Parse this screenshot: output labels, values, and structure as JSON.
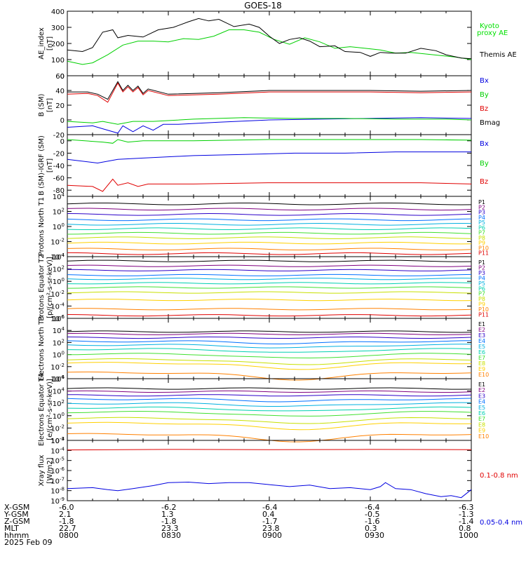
{
  "title": "GOES-18",
  "footer": {
    "row_labels": [
      "X-GSM",
      "Y-GSM",
      "Z-GSM",
      "MLT",
      "hhmm",
      "2025 Feb 09"
    ],
    "columns": [
      [
        "-6.0",
        "2.1",
        "-1.8",
        "22.7",
        "0800"
      ],
      [
        "-6.2",
        "1.3",
        "-1.8",
        "23.3",
        "0830"
      ],
      [
        "-6.4",
        "0.4",
        "-1.7",
        "23.8",
        "0900"
      ],
      [
        "-6.4",
        "-0.5",
        "-1.6",
        "0.3",
        "0930"
      ],
      [
        "-6.3",
        "-1.3",
        "-1.4",
        "0.8",
        "1000"
      ]
    ]
  },
  "colors": {
    "black": "#000000",
    "green": "#00d000",
    "blue": "#0000e0",
    "red": "#e00000",
    "bright_green": "#00e000",
    "ladder": [
      "#000000",
      "#7f007f",
      "#2b00c8",
      "#0070ff",
      "#00b0e0",
      "#00d0b0",
      "#40e030",
      "#c8e000",
      "#ffd000",
      "#ff8000",
      "#e00000"
    ]
  },
  "chart_data": [
    {
      "type": "line",
      "ylabel": "AE_index [nT]",
      "ylim": [
        0,
        400
      ],
      "y_ticks": [
        "0",
        "100",
        "200",
        "300",
        "400"
      ],
      "log": false,
      "x": [
        "0800",
        "0830",
        "0900",
        "0930",
        "1000"
      ],
      "series": [
        {
          "name": "Kyoto proxy AE",
          "color": "green",
          "points": [
            [
              0,
              90
            ],
            [
              6,
              70
            ],
            [
              10,
              80
            ],
            [
              16,
              130
            ],
            [
              22,
              190
            ],
            [
              28,
              215
            ],
            [
              34,
              215
            ],
            [
              40,
              210
            ],
            [
              46,
              230
            ],
            [
              52,
              225
            ],
            [
              58,
              245
            ],
            [
              64,
              285
            ],
            [
              70,
              285
            ],
            [
              76,
              270
            ],
            [
              82,
              225
            ],
            [
              88,
              195
            ],
            [
              94,
              235
            ],
            [
              100,
              210
            ],
            [
              106,
              170
            ],
            [
              112,
              180
            ],
            [
              118,
              170
            ],
            [
              124,
              160
            ],
            [
              130,
              140
            ],
            [
              136,
              145
            ],
            [
              142,
              135
            ],
            [
              148,
              125
            ],
            [
              154,
              115
            ],
            [
              160,
              100
            ]
          ]
        },
        {
          "name": "Themis AE",
          "color": "black",
          "points": [
            [
              0,
              160
            ],
            [
              6,
              150
            ],
            [
              10,
              175
            ],
            [
              14,
              270
            ],
            [
              18,
              285
            ],
            [
              20,
              235
            ],
            [
              24,
              250
            ],
            [
              30,
              240
            ],
            [
              36,
              285
            ],
            [
              42,
              300
            ],
            [
              48,
              335
            ],
            [
              52,
              355
            ],
            [
              56,
              340
            ],
            [
              60,
              350
            ],
            [
              66,
              305
            ],
            [
              72,
              320
            ],
            [
              76,
              300
            ],
            [
              80,
              245
            ],
            [
              84,
              200
            ],
            [
              88,
              225
            ],
            [
              92,
              235
            ],
            [
              96,
              215
            ],
            [
              100,
              180
            ],
            [
              106,
              185
            ],
            [
              110,
              150
            ],
            [
              116,
              145
            ],
            [
              120,
              120
            ],
            [
              124,
              145
            ],
            [
              128,
              140
            ],
            [
              134,
              140
            ],
            [
              140,
              170
            ],
            [
              146,
              155
            ],
            [
              150,
              130
            ],
            [
              156,
              110
            ],
            [
              160,
              105
            ]
          ]
        }
      ]
    },
    {
      "type": "line",
      "ylabel": "B (SM) [nT]",
      "ylim": [
        -20,
        60
      ],
      "y_ticks": [
        "-20",
        "0",
        "20",
        "40",
        "60"
      ],
      "log": false,
      "series": [
        {
          "name": "Bx",
          "color": "blue",
          "points": [
            [
              0,
              -10
            ],
            [
              10,
              -8
            ],
            [
              14,
              -12
            ],
            [
              20,
              -18
            ],
            [
              22,
              -8
            ],
            [
              26,
              -16
            ],
            [
              30,
              -8
            ],
            [
              34,
              -14
            ],
            [
              38,
              -6
            ],
            [
              44,
              -6
            ],
            [
              60,
              -3
            ],
            [
              80,
              0
            ],
            [
              100,
              1
            ],
            [
              120,
              2
            ],
            [
              140,
              3
            ],
            [
              160,
              2
            ]
          ]
        },
        {
          "name": "By",
          "color": "green",
          "points": [
            [
              0,
              -2
            ],
            [
              10,
              -4
            ],
            [
              14,
              -2
            ],
            [
              20,
              -6
            ],
            [
              26,
              -2
            ],
            [
              34,
              -2
            ],
            [
              50,
              1
            ],
            [
              70,
              3
            ],
            [
              90,
              2
            ],
            [
              110,
              2
            ],
            [
              130,
              1
            ],
            [
              150,
              1
            ],
            [
              160,
              0
            ]
          ]
        },
        {
          "name": "Bz",
          "color": "red",
          "points": [
            [
              0,
              35
            ],
            [
              8,
              36
            ],
            [
              12,
              33
            ],
            [
              16,
              24
            ],
            [
              20,
              50
            ],
            [
              22,
              38
            ],
            [
              24,
              45
            ],
            [
              26,
              38
            ],
            [
              28,
              44
            ],
            [
              30,
              34
            ],
            [
              32,
              40
            ],
            [
              40,
              33
            ],
            [
              60,
              35
            ],
            [
              80,
              38
            ],
            [
              100,
              38
            ],
            [
              120,
              38
            ],
            [
              140,
              37
            ],
            [
              160,
              38
            ]
          ]
        },
        {
          "name": "Bmag",
          "color": "black",
          "points": [
            [
              0,
              38
            ],
            [
              8,
              38
            ],
            [
              12,
              35
            ],
            [
              16,
              28
            ],
            [
              20,
              52
            ],
            [
              22,
              40
            ],
            [
              24,
              47
            ],
            [
              26,
              40
            ],
            [
              28,
              46
            ],
            [
              30,
              36
            ],
            [
              32,
              42
            ],
            [
              40,
              35
            ],
            [
              60,
              37
            ],
            [
              80,
              40
            ],
            [
              100,
              40
            ],
            [
              120,
              40
            ],
            [
              140,
              39
            ],
            [
              160,
              40
            ]
          ]
        }
      ]
    },
    {
      "type": "line",
      "ylabel": "B (SM)-IGRF (SM) [nT]",
      "ylim": [
        -90,
        10
      ],
      "y_ticks": [
        "-80",
        "-60",
        "-40",
        "-20",
        "0"
      ],
      "log": false,
      "series": [
        {
          "name": "Bx",
          "color": "blue",
          "points": [
            [
              0,
              -30
            ],
            [
              12,
              -36
            ],
            [
              20,
              -30
            ],
            [
              30,
              -28
            ],
            [
              50,
              -24
            ],
            [
              70,
              -22
            ],
            [
              90,
              -20
            ],
            [
              110,
              -20
            ],
            [
              130,
              -18
            ],
            [
              150,
              -18
            ],
            [
              160,
              -18
            ]
          ]
        },
        {
          "name": "By",
          "color": "green",
          "points": [
            [
              0,
              2
            ],
            [
              14,
              -2
            ],
            [
              18,
              -4
            ],
            [
              20,
              2
            ],
            [
              24,
              -2
            ],
            [
              30,
              0
            ],
            [
              50,
              0
            ],
            [
              80,
              2
            ],
            [
              110,
              2
            ],
            [
              140,
              2
            ],
            [
              160,
              1
            ]
          ]
        },
        {
          "name": "Bz",
          "color": "red",
          "points": [
            [
              0,
              -72
            ],
            [
              10,
              -74
            ],
            [
              14,
              -82
            ],
            [
              18,
              -62
            ],
            [
              20,
              -72
            ],
            [
              24,
              -68
            ],
            [
              28,
              -74
            ],
            [
              32,
              -70
            ],
            [
              50,
              -70
            ],
            [
              80,
              -68
            ],
            [
              110,
              -68
            ],
            [
              140,
              -68
            ],
            [
              160,
              -70
            ]
          ]
        }
      ]
    },
    {
      "type": "line",
      "ylabel": "Protons North T1",
      "log": true,
      "ylim_exp": [
        -4,
        4
      ],
      "y_ticks": [
        "10^-4",
        "10^-2",
        "10^0",
        "10^2",
        "10^4"
      ],
      "channels": [
        "P1",
        "P2",
        "P3",
        "P4",
        "P5",
        "P6",
        "P7",
        "P8",
        "P9",
        "P10",
        "P11"
      ],
      "levels": [
        3.0,
        2.3,
        1.6,
        0.9,
        0.3,
        -0.3,
        -0.9,
        -1.5,
        -2.2,
        -3.0,
        -3.6
      ]
    },
    {
      "type": "line",
      "ylabel": "Protons Equator T2 [p/(cm²-s-sr-keV)]",
      "log": true,
      "ylim_exp": [
        -6,
        4
      ],
      "y_ticks": [
        "10^-6",
        "10^-4",
        "10^-2",
        "10^0",
        "10^2",
        "10^4"
      ],
      "channels": [
        "P1",
        "P2",
        "P3",
        "P4",
        "P5",
        "P6",
        "P7",
        "P8",
        "P9",
        "P10",
        "P11"
      ],
      "levels": [
        3.3,
        2.5,
        1.8,
        1.0,
        0.4,
        -0.3,
        -1.0,
        -1.8,
        -3.0,
        -4.5,
        -5.5
      ]
    },
    {
      "type": "line",
      "ylabel": "Electrons North T3",
      "log": true,
      "ylim_exp": [
        -4,
        6
      ],
      "y_ticks": [
        "10^-4",
        "10^-2",
        "10^0",
        "10^2",
        "10^4",
        "10^6"
      ],
      "channels": [
        "E1",
        "E2",
        "E3",
        "E4",
        "E5",
        "E6",
        "E7",
        "E8",
        "E9",
        "E10"
      ],
      "levels": [
        3.8,
        3.4,
        2.8,
        2.2,
        1.6,
        0.9,
        0.1,
        -0.8,
        -1.4,
        -3.0
      ]
    },
    {
      "type": "line",
      "ylabel": "Electrons Equator T4 [e/(cm²-s-sr-keV)]",
      "log": true,
      "ylim_exp": [
        -4,
        6
      ],
      "y_ticks": [
        "10^-4",
        "10^-2",
        "10^0",
        "10^2",
        "10^4",
        "10^6"
      ],
      "channels": [
        "E1",
        "E2",
        "E3",
        "E4",
        "E5",
        "E6",
        "E7",
        "E8",
        "E9",
        "E10"
      ],
      "levels": [
        4.4,
        3.9,
        3.3,
        2.7,
        2.0,
        1.3,
        0.6,
        -0.4,
        -1.2,
        -3.0
      ]
    },
    {
      "type": "line",
      "ylabel": "Xray flux [W/m2]",
      "log": true,
      "ylim_exp": [
        -9,
        -3
      ],
      "y_ticks": [
        "10^-9",
        "10^-8",
        "10^-7",
        "10^-6",
        "10^-5",
        "10^-4",
        "10^-3"
      ],
      "series": [
        {
          "name": "0.1-0.8 nm",
          "color": "red",
          "points": [
            [
              0,
              -3.95
            ],
            [
              40,
              -3.9
            ],
            [
              80,
              -3.92
            ],
            [
              120,
              -3.9
            ],
            [
              160,
              -3.92
            ]
          ]
        },
        {
          "name": "0.05-0.4 nm",
          "color": "blue",
          "points": [
            [
              0,
              -7.8
            ],
            [
              10,
              -7.7
            ],
            [
              16,
              -7.9
            ],
            [
              20,
              -8.0
            ],
            [
              26,
              -7.8
            ],
            [
              34,
              -7.5
            ],
            [
              40,
              -7.2
            ],
            [
              48,
              -7.15
            ],
            [
              56,
              -7.3
            ],
            [
              64,
              -7.2
            ],
            [
              72,
              -7.2
            ],
            [
              80,
              -7.4
            ],
            [
              88,
              -7.6
            ],
            [
              96,
              -7.45
            ],
            [
              104,
              -7.8
            ],
            [
              112,
              -7.7
            ],
            [
              120,
              -7.9
            ],
            [
              124,
              -7.6
            ],
            [
              126,
              -7.2
            ],
            [
              130,
              -7.8
            ],
            [
              136,
              -7.9
            ],
            [
              142,
              -8.3
            ],
            [
              148,
              -8.6
            ],
            [
              152,
              -8.5
            ],
            [
              156,
              -8.7
            ],
            [
              160,
              -7.9
            ]
          ]
        }
      ]
    }
  ]
}
